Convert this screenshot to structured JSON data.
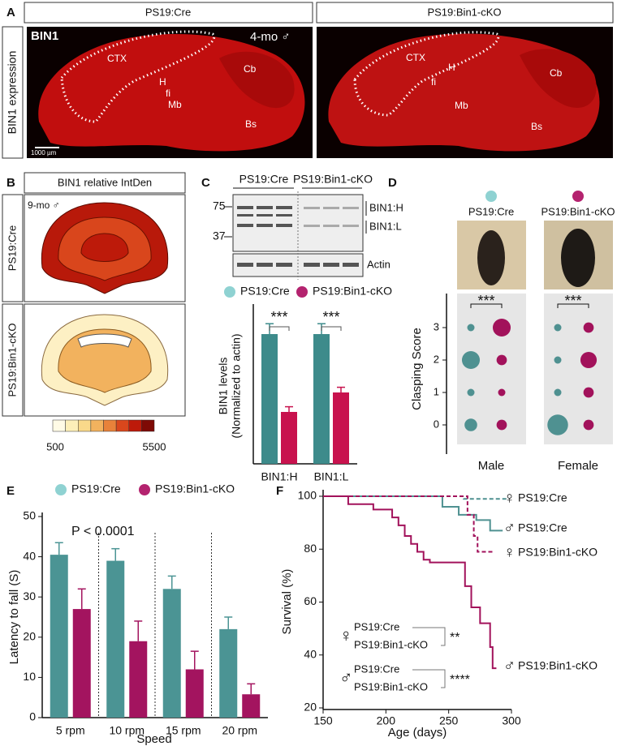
{
  "panel_labels": [
    "A",
    "B",
    "C",
    "D",
    "E",
    "F"
  ],
  "panel_a": {
    "columns": [
      "PS19:Cre",
      "PS19:Bin1-cKO"
    ],
    "row_label": "BIN1 expression",
    "stain": "BIN1",
    "age": "4-mo ♂",
    "regions": [
      [
        "CTX",
        "H",
        "fi",
        "Mb",
        "Cb",
        "Bs"
      ],
      [
        "CTX",
        "H",
        "fi",
        "Mb",
        "Cb",
        "Bs"
      ]
    ],
    "scale_bar": "1000 µm"
  },
  "panel_b": {
    "title": "BIN1 relative IntDen",
    "age": "9-mo ♂",
    "rows": [
      "PS19:Cre",
      "PS19:Bin1-cKO"
    ],
    "colorbar": {
      "ticks": [
        500,
        5500
      ],
      "colors": [
        "#fffbe6",
        "#fdefb8",
        "#f9d98a",
        "#f2b25e",
        "#e8823a",
        "#d9471c",
        "#bd1a0a",
        "#7e0a05"
      ]
    }
  },
  "blot": {
    "groups": [
      "PS19:Cre",
      "PS19:Bin1-cKO"
    ],
    "markers": [
      75,
      37
    ],
    "bands": [
      "BIN1:H",
      "BIN1:L",
      "Actin"
    ]
  },
  "chart_data": [
    {
      "type": "bar",
      "ylabel": [
        "BIN1 levels",
        "(Normalized to actin)"
      ],
      "categories": [
        "BIN1:H",
        "BIN1:L"
      ],
      "series": [
        {
          "name": "PS19:Cre",
          "color": "#3d8b8b",
          "legend_color": "#8fd2d2",
          "values": [
            100,
            100
          ],
          "errors": [
            8,
            8
          ]
        },
        {
          "name": "PS19:Bin1-cKO",
          "color": "#c8124e",
          "legend_color": "#b4236f",
          "values": [
            40,
            55
          ],
          "errors": [
            4,
            4
          ]
        }
      ],
      "ylim": [
        0,
        120
      ],
      "annotations": [
        "***",
        "***"
      ]
    },
    {
      "type": "bubble",
      "ylabel": "Clasping Score",
      "categories": [
        "Male",
        "Female"
      ],
      "yticks": [
        0,
        1,
        2,
        3
      ],
      "ylim": [
        -0.6,
        4.05
      ],
      "series": [
        {
          "name": "PS19:Cre",
          "color": "#4f9191",
          "legend_color": "#8fd2d2",
          "values": [
            [
              3,
              1,
              6,
              1
            ],
            [
              8,
              1,
              1,
              1
            ]
          ]
        },
        {
          "name": "PS19:Bin1-cKO",
          "color": "#a2125b",
          "legend_color": "#b4236f",
          "values": [
            [
              2,
              1,
              2,
              6
            ],
            [
              2,
              2,
              5,
              2
            ]
          ]
        }
      ],
      "annotations": [
        "***",
        "***"
      ]
    },
    {
      "type": "bar",
      "ylabel": "Latency to fall (S)",
      "xlabel": "Speed",
      "annotation": "P < 0.0001",
      "categories": [
        "5 rpm",
        "10 rpm",
        "15 rpm",
        "20 rpm"
      ],
      "series": [
        {
          "name": "PS19:Cre",
          "color": "#4b9494",
          "legend_color": "#8fd2d2",
          "values": [
            40.5,
            39,
            32,
            22
          ],
          "errors": [
            3,
            3,
            3.2,
            3
          ]
        },
        {
          "name": "PS19:Bin1-cKO",
          "color": "#a3145f",
          "legend_color": "#b4236f",
          "values": [
            27,
            19,
            12,
            5.8
          ],
          "errors": [
            5,
            5,
            4.5,
            2.6
          ]
        }
      ],
      "ylim": [
        0,
        50
      ],
      "yticks": [
        0,
        10,
        20,
        30,
        40,
        50
      ]
    },
    {
      "type": "line",
      "xlabel": "Age (days)",
      "ylabel": "Survival (%)",
      "xlim": [
        150,
        300
      ],
      "xticks": [
        150,
        200,
        250,
        300
      ],
      "ylim": [
        20,
        100
      ],
      "yticks": [
        20,
        40,
        60,
        80,
        100
      ],
      "series": [
        {
          "name": "PS19:Cre",
          "sex": "♀",
          "color": "#4f9191",
          "dashed": true,
          "x": [
            150,
            262,
            298
          ],
          "values": [
            100,
            99,
            99
          ]
        },
        {
          "name": "PS19:Cre",
          "sex": "♂",
          "color": "#4f9191",
          "dashed": false,
          "x": [
            150,
            245,
            258,
            272,
            283,
            293
          ],
          "values": [
            100,
            96,
            93,
            91,
            87,
            87
          ]
        },
        {
          "name": "PS19:Bin1-cKO",
          "sex": "♀",
          "color": "#a2125b",
          "dashed": true,
          "x": [
            150,
            265,
            270,
            273,
            285
          ],
          "values": [
            100,
            93,
            85,
            79,
            79
          ]
        },
        {
          "name": "PS19:Bin1-cKO",
          "sex": "♂",
          "color": "#a2125b",
          "dashed": false,
          "x": [
            150,
            170,
            190,
            205,
            210,
            215,
            220,
            225,
            230,
            235,
            263,
            268,
            275,
            283,
            285,
            288
          ],
          "values": [
            100,
            97,
            95,
            92,
            89,
            85,
            82,
            79,
            76,
            75,
            66,
            58,
            52,
            43,
            35,
            35
          ]
        }
      ],
      "comparisons": [
        {
          "sex": "♀",
          "names": [
            "PS19:Cre",
            "PS19:Bin1-cKO"
          ],
          "p": "**"
        },
        {
          "sex": "♂",
          "names": [
            "PS19:Cre",
            "PS19:Bin1-cKO"
          ],
          "p": "****"
        }
      ]
    }
  ]
}
